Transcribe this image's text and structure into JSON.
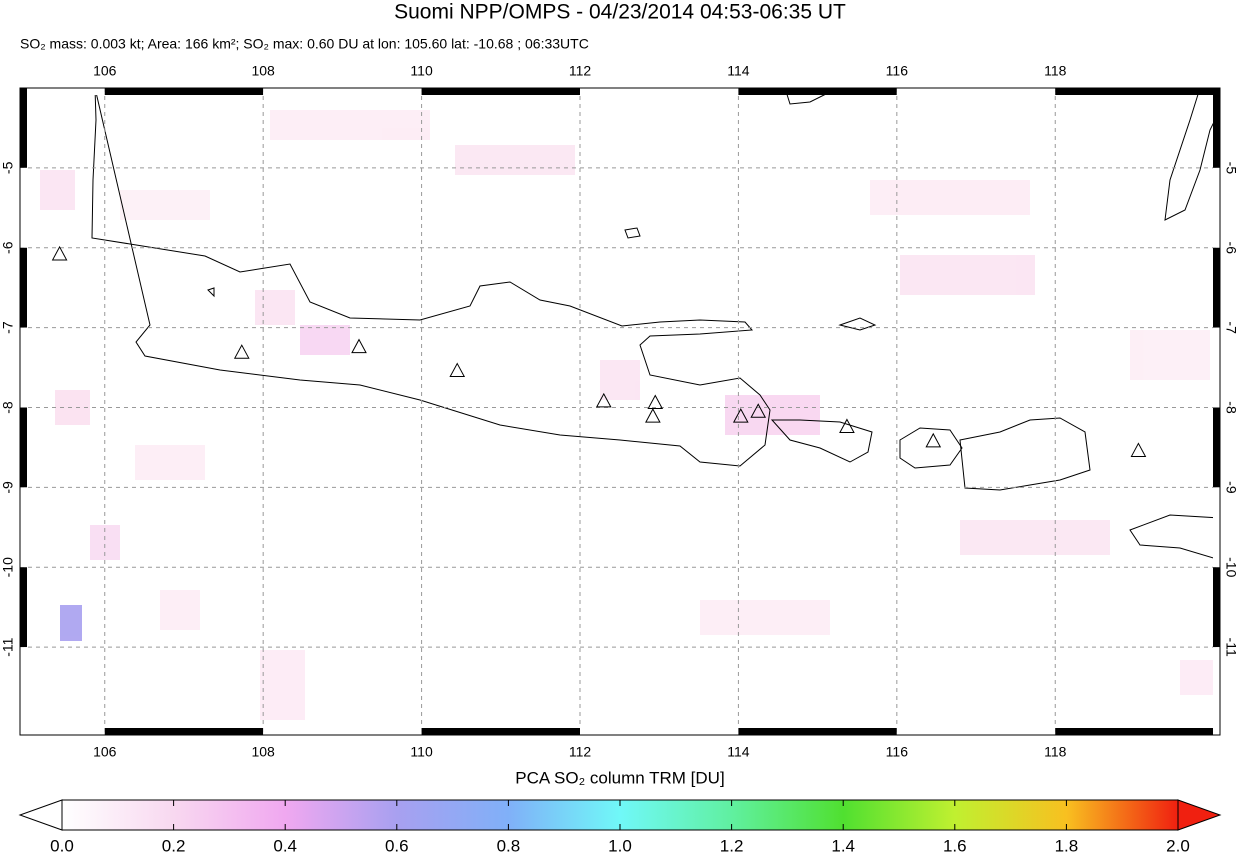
{
  "header": {
    "title": "Suomi NPP/OMPS - 04/23/2014 04:53-06:35 UT",
    "subtitle": "SO₂ mass: 0.003 kt; Area: 166 km²; SO₂ max: 0.60 DU at lon: 105.60 lat: -10.68 ; 06:33UTC"
  },
  "map": {
    "xlim": [
      104.93,
      120.08
    ],
    "ylim": [
      -12.1,
      -4.0
    ],
    "xticks": [
      106,
      108,
      110,
      112,
      114,
      116,
      118
    ],
    "yticks": [
      -5,
      -6,
      -7,
      -8,
      -9,
      -10,
      -11
    ],
    "grid": true,
    "volcanoes": {
      "lon": [
        105.43,
        107.73,
        109.21,
        110.45,
        112.3,
        112.95,
        112.92,
        114.03,
        114.25,
        115.37,
        116.46,
        119.05
      ],
      "lat": [
        -6.09,
        -7.32,
        -7.25,
        -7.55,
        -7.93,
        -7.95,
        -8.12,
        -8.12,
        -8.06,
        -8.25,
        -8.43,
        -8.55
      ]
    }
  },
  "colorbar": {
    "label": "PCA SO₂ column TRM [DU]",
    "lim": [
      0,
      2
    ],
    "ticks": [
      {
        "value": 0,
        "label": "0.0"
      },
      {
        "value": 0.2,
        "label": "0.2"
      },
      {
        "value": 0.4,
        "label": "0.4"
      },
      {
        "value": 0.6,
        "label": "0.6"
      },
      {
        "value": 0.8,
        "label": "0.8"
      },
      {
        "value": 1,
        "label": "1.0"
      },
      {
        "value": 1.2,
        "label": "1.2"
      },
      {
        "value": 1.4,
        "label": "1.4"
      },
      {
        "value": 1.6,
        "label": "1.6"
      },
      {
        "value": 1.8,
        "label": "1.8"
      },
      {
        "value": 2,
        "label": "2.0"
      }
    ],
    "colors": [
      "#ffffff",
      "#f8d8f0",
      "#f0a8f0",
      "#a8a0f0",
      "#80b0f8",
      "#70f8f8",
      "#60f0a0",
      "#50e030",
      "#c0f030",
      "#f8c020",
      "#f02010"
    ]
  }
}
